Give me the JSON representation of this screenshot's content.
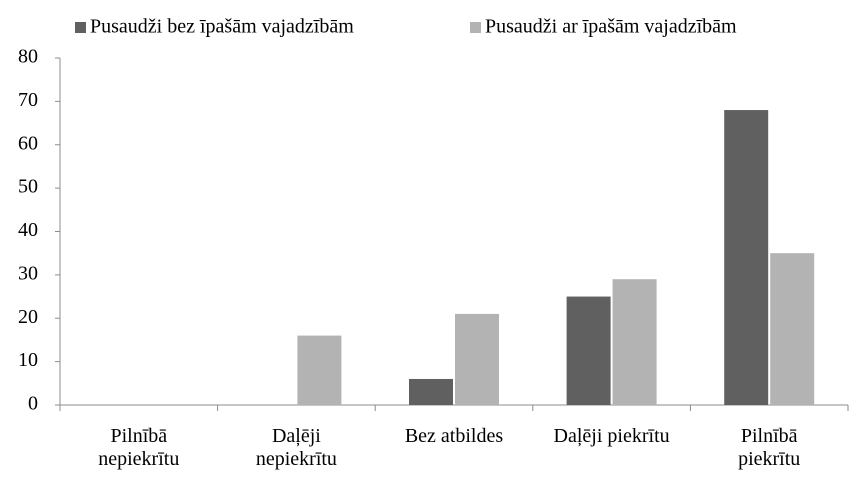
{
  "chart_data": {
    "type": "bar",
    "categories": [
      "Pilnībā\nnepiekrītu",
      "Daļēji\nnepiekrītu",
      "Bez atbildes",
      "Daļēji piekrītu",
      "Pilnībā\npiekrītu"
    ],
    "series": [
      {
        "name": "Pusaudži bez īpašām vajadzībām",
        "color": "#606060",
        "values": [
          0,
          0,
          6,
          25,
          68
        ]
      },
      {
        "name": "Pusaudži ar īpašām vajadzībām",
        "color": "#b3b3b3",
        "values": [
          0,
          16,
          21,
          29,
          35
        ]
      }
    ],
    "ylim": [
      0,
      80
    ],
    "yticks": [
      0,
      10,
      20,
      30,
      40,
      50,
      60,
      70,
      80
    ],
    "grid": false,
    "legend": "top"
  }
}
